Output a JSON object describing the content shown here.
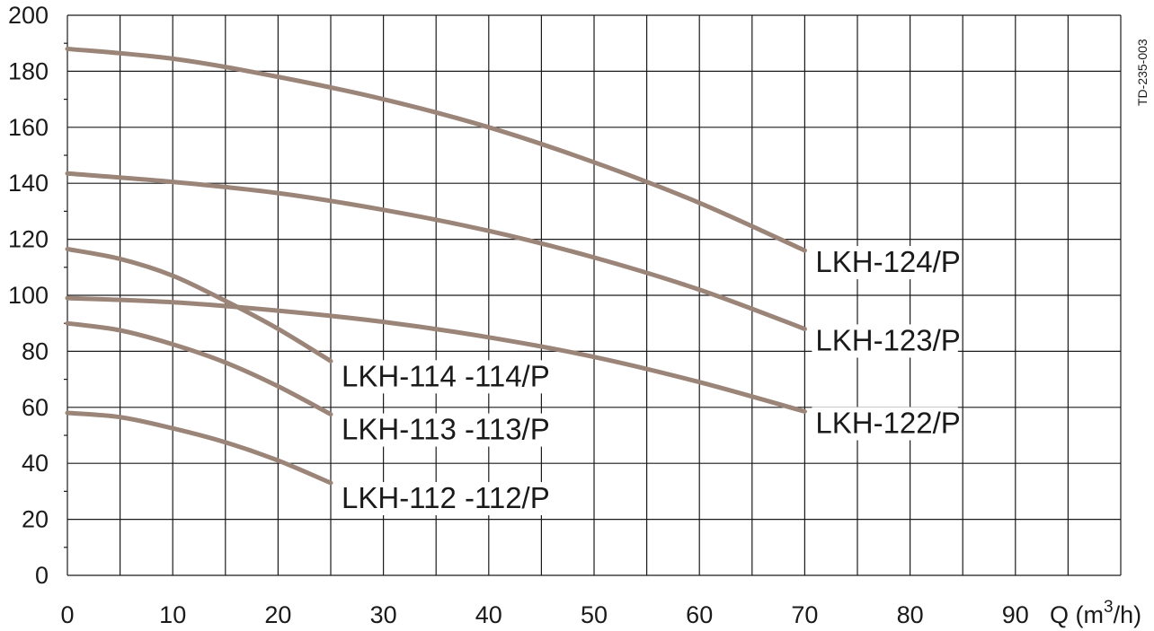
{
  "code_label": "TD-235-003",
  "colors": {
    "curve": "#9b8478",
    "grid": "#1a1a1a",
    "text": "#1a1a1a"
  },
  "chart_data": {
    "type": "line",
    "title": "",
    "xlabel": "Q (m3/h)",
    "ylabel": "",
    "xlim": [
      0,
      100
    ],
    "ylim": [
      0,
      200
    ],
    "x_ticks": [
      0,
      10,
      20,
      30,
      40,
      50,
      60,
      70,
      80,
      90
    ],
    "y_ticks": [
      0,
      20,
      40,
      60,
      80,
      100,
      120,
      140,
      160,
      180,
      200
    ],
    "x_unit_label": {
      "prefix": "Q (m",
      "sup": "3",
      "suffix": "/h)"
    },
    "grid": true,
    "series": [
      {
        "name": "LKH-124/P",
        "x": [
          0,
          10,
          20,
          30,
          40,
          50,
          60,
          70
        ],
        "y": [
          188,
          184.5,
          178,
          170,
          160,
          147.5,
          133,
          116
        ]
      },
      {
        "name": "LKH-123/P",
        "x": [
          0,
          10,
          20,
          30,
          40,
          50,
          60,
          70
        ],
        "y": [
          143.5,
          140.5,
          136.5,
          130.5,
          123,
          113.5,
          102,
          88
        ]
      },
      {
        "name": "LKH-122/P",
        "x": [
          0,
          10,
          20,
          30,
          40,
          50,
          60,
          70
        ],
        "y": [
          99,
          97.5,
          94.5,
          90.5,
          85,
          78,
          69,
          58.5
        ]
      },
      {
        "name": "LKH-114 -114/P",
        "x": [
          0,
          5,
          10,
          15,
          20,
          25
        ],
        "y": [
          116.5,
          113,
          107,
          98,
          88,
          76.5
        ]
      },
      {
        "name": "LKH-113 -113/P",
        "x": [
          0,
          5,
          10,
          15,
          20,
          25
        ],
        "y": [
          90,
          87.5,
          82.5,
          76,
          67.5,
          57.5
        ]
      },
      {
        "name": "LKH-112 -112/P",
        "x": [
          0,
          5,
          10,
          15,
          20,
          25
        ],
        "y": [
          58,
          56.5,
          52.5,
          47.5,
          41,
          33
        ]
      }
    ]
  }
}
